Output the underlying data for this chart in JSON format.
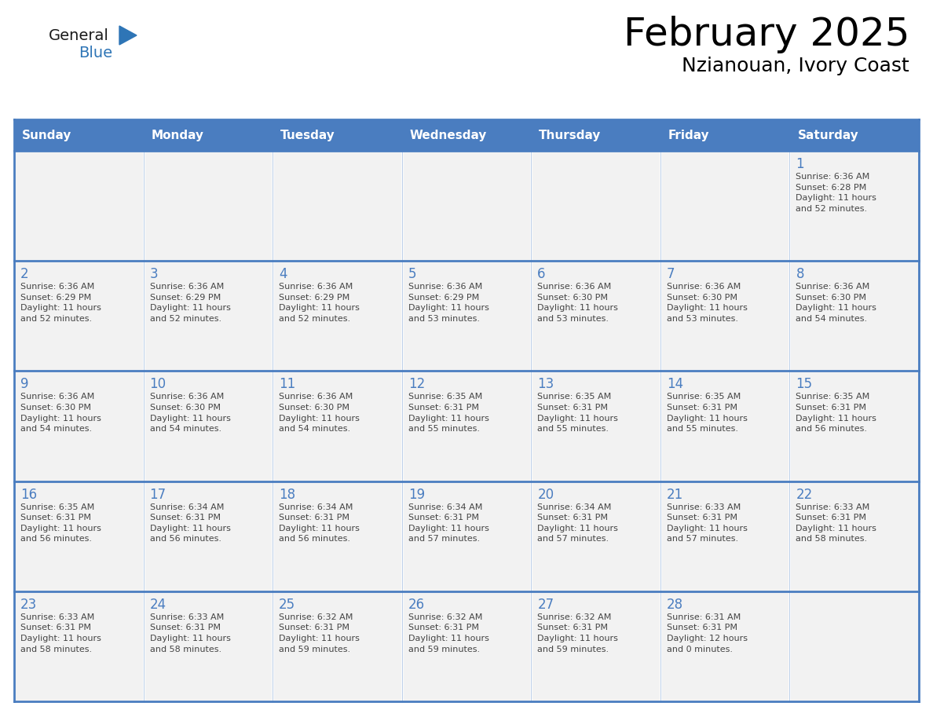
{
  "title": "February 2025",
  "subtitle": "Nzianouan, Ivory Coast",
  "days_of_week": [
    "Sunday",
    "Monday",
    "Tuesday",
    "Wednesday",
    "Thursday",
    "Friday",
    "Saturday"
  ],
  "header_bg": "#4A7DC0",
  "header_text": "#FFFFFF",
  "cell_bg_light": "#F2F2F2",
  "cell_bg_white": "#FFFFFF",
  "text_color": "#444444",
  "day_number_color": "#4A7DC0",
  "line_color": "#4A7DC0",
  "logo_general_color": "#1a1a1a",
  "logo_blue_color": "#2E75B6",
  "calendar_data": [
    [
      {
        "day": null,
        "info": null
      },
      {
        "day": null,
        "info": null
      },
      {
        "day": null,
        "info": null
      },
      {
        "day": null,
        "info": null
      },
      {
        "day": null,
        "info": null
      },
      {
        "day": null,
        "info": null
      },
      {
        "day": 1,
        "info": "Sunrise: 6:36 AM\nSunset: 6:28 PM\nDaylight: 11 hours\nand 52 minutes."
      }
    ],
    [
      {
        "day": 2,
        "info": "Sunrise: 6:36 AM\nSunset: 6:29 PM\nDaylight: 11 hours\nand 52 minutes."
      },
      {
        "day": 3,
        "info": "Sunrise: 6:36 AM\nSunset: 6:29 PM\nDaylight: 11 hours\nand 52 minutes."
      },
      {
        "day": 4,
        "info": "Sunrise: 6:36 AM\nSunset: 6:29 PM\nDaylight: 11 hours\nand 52 minutes."
      },
      {
        "day": 5,
        "info": "Sunrise: 6:36 AM\nSunset: 6:29 PM\nDaylight: 11 hours\nand 53 minutes."
      },
      {
        "day": 6,
        "info": "Sunrise: 6:36 AM\nSunset: 6:30 PM\nDaylight: 11 hours\nand 53 minutes."
      },
      {
        "day": 7,
        "info": "Sunrise: 6:36 AM\nSunset: 6:30 PM\nDaylight: 11 hours\nand 53 minutes."
      },
      {
        "day": 8,
        "info": "Sunrise: 6:36 AM\nSunset: 6:30 PM\nDaylight: 11 hours\nand 54 minutes."
      }
    ],
    [
      {
        "day": 9,
        "info": "Sunrise: 6:36 AM\nSunset: 6:30 PM\nDaylight: 11 hours\nand 54 minutes."
      },
      {
        "day": 10,
        "info": "Sunrise: 6:36 AM\nSunset: 6:30 PM\nDaylight: 11 hours\nand 54 minutes."
      },
      {
        "day": 11,
        "info": "Sunrise: 6:36 AM\nSunset: 6:30 PM\nDaylight: 11 hours\nand 54 minutes."
      },
      {
        "day": 12,
        "info": "Sunrise: 6:35 AM\nSunset: 6:31 PM\nDaylight: 11 hours\nand 55 minutes."
      },
      {
        "day": 13,
        "info": "Sunrise: 6:35 AM\nSunset: 6:31 PM\nDaylight: 11 hours\nand 55 minutes."
      },
      {
        "day": 14,
        "info": "Sunrise: 6:35 AM\nSunset: 6:31 PM\nDaylight: 11 hours\nand 55 minutes."
      },
      {
        "day": 15,
        "info": "Sunrise: 6:35 AM\nSunset: 6:31 PM\nDaylight: 11 hours\nand 56 minutes."
      }
    ],
    [
      {
        "day": 16,
        "info": "Sunrise: 6:35 AM\nSunset: 6:31 PM\nDaylight: 11 hours\nand 56 minutes."
      },
      {
        "day": 17,
        "info": "Sunrise: 6:34 AM\nSunset: 6:31 PM\nDaylight: 11 hours\nand 56 minutes."
      },
      {
        "day": 18,
        "info": "Sunrise: 6:34 AM\nSunset: 6:31 PM\nDaylight: 11 hours\nand 56 minutes."
      },
      {
        "day": 19,
        "info": "Sunrise: 6:34 AM\nSunset: 6:31 PM\nDaylight: 11 hours\nand 57 minutes."
      },
      {
        "day": 20,
        "info": "Sunrise: 6:34 AM\nSunset: 6:31 PM\nDaylight: 11 hours\nand 57 minutes."
      },
      {
        "day": 21,
        "info": "Sunrise: 6:33 AM\nSunset: 6:31 PM\nDaylight: 11 hours\nand 57 minutes."
      },
      {
        "day": 22,
        "info": "Sunrise: 6:33 AM\nSunset: 6:31 PM\nDaylight: 11 hours\nand 58 minutes."
      }
    ],
    [
      {
        "day": 23,
        "info": "Sunrise: 6:33 AM\nSunset: 6:31 PM\nDaylight: 11 hours\nand 58 minutes."
      },
      {
        "day": 24,
        "info": "Sunrise: 6:33 AM\nSunset: 6:31 PM\nDaylight: 11 hours\nand 58 minutes."
      },
      {
        "day": 25,
        "info": "Sunrise: 6:32 AM\nSunset: 6:31 PM\nDaylight: 11 hours\nand 59 minutes."
      },
      {
        "day": 26,
        "info": "Sunrise: 6:32 AM\nSunset: 6:31 PM\nDaylight: 11 hours\nand 59 minutes."
      },
      {
        "day": 27,
        "info": "Sunrise: 6:32 AM\nSunset: 6:31 PM\nDaylight: 11 hours\nand 59 minutes."
      },
      {
        "day": 28,
        "info": "Sunrise: 6:31 AM\nSunset: 6:31 PM\nDaylight: 12 hours\nand 0 minutes."
      },
      {
        "day": null,
        "info": null
      }
    ]
  ],
  "fig_width": 11.88,
  "fig_height": 9.18,
  "dpi": 100
}
